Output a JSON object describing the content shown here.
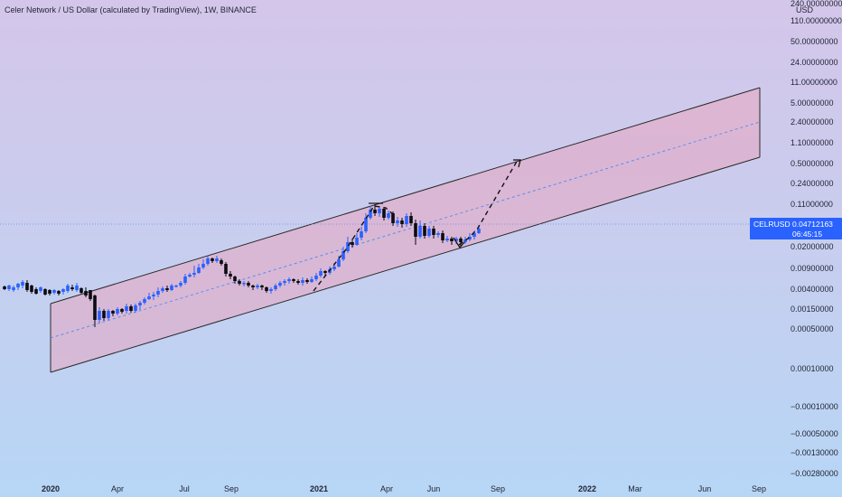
{
  "header": {
    "title": "Celer Network / US Dollar (calculated by TradingView), 1W, BINANCE"
  },
  "price_scale": {
    "currency": "USD",
    "ticks": [
      "240.00000000",
      "110.00000000",
      "50.00000000",
      "24.00000000",
      "11.00000000",
      "5.00000000",
      "2.40000000",
      "1.10000000",
      "0.50000000",
      "0.24000000",
      "0.11000000",
      "0.04712163",
      "0.02000000",
      "0.00900000",
      "0.00400000",
      "0.00150000",
      "0.00050000",
      "0.00010000",
      "−0.00010000",
      "−0.00050000",
      "−0.00130000",
      "−0.00280000"
    ]
  },
  "time_scale": {
    "labels": [
      "2020",
      "Apr",
      "Jul",
      "Sep",
      "2021",
      "Apr",
      "Jun",
      "Sep",
      "2022",
      "Mar",
      "Jun",
      "Sep"
    ],
    "bold": [
      true,
      false,
      false,
      false,
      true,
      false,
      false,
      false,
      true,
      false,
      false,
      false
    ]
  },
  "price_badge": {
    "symbol": "CELRUSD",
    "price": "0.04712163",
    "countdown": "06:45:15"
  },
  "colors": {
    "up_candle": "#2962ff",
    "down_candle": "#0b0b12",
    "channel_fill": "#e8a6c0",
    "channel_line": "#2a2a2a",
    "midline": "#5b8df0",
    "price_line": "#5b8df0",
    "badge": "#2962ff"
  },
  "chart_data": {
    "type": "candlestick",
    "symbol": "CELRUSD",
    "interval": "1W",
    "exchange": "BINANCE",
    "scale": "log",
    "last_price": 0.04712163,
    "drawings": [
      "ascending parallel channel",
      "channel midline (dashed)",
      "projected path (dashed)"
    ],
    "grid": false
  }
}
